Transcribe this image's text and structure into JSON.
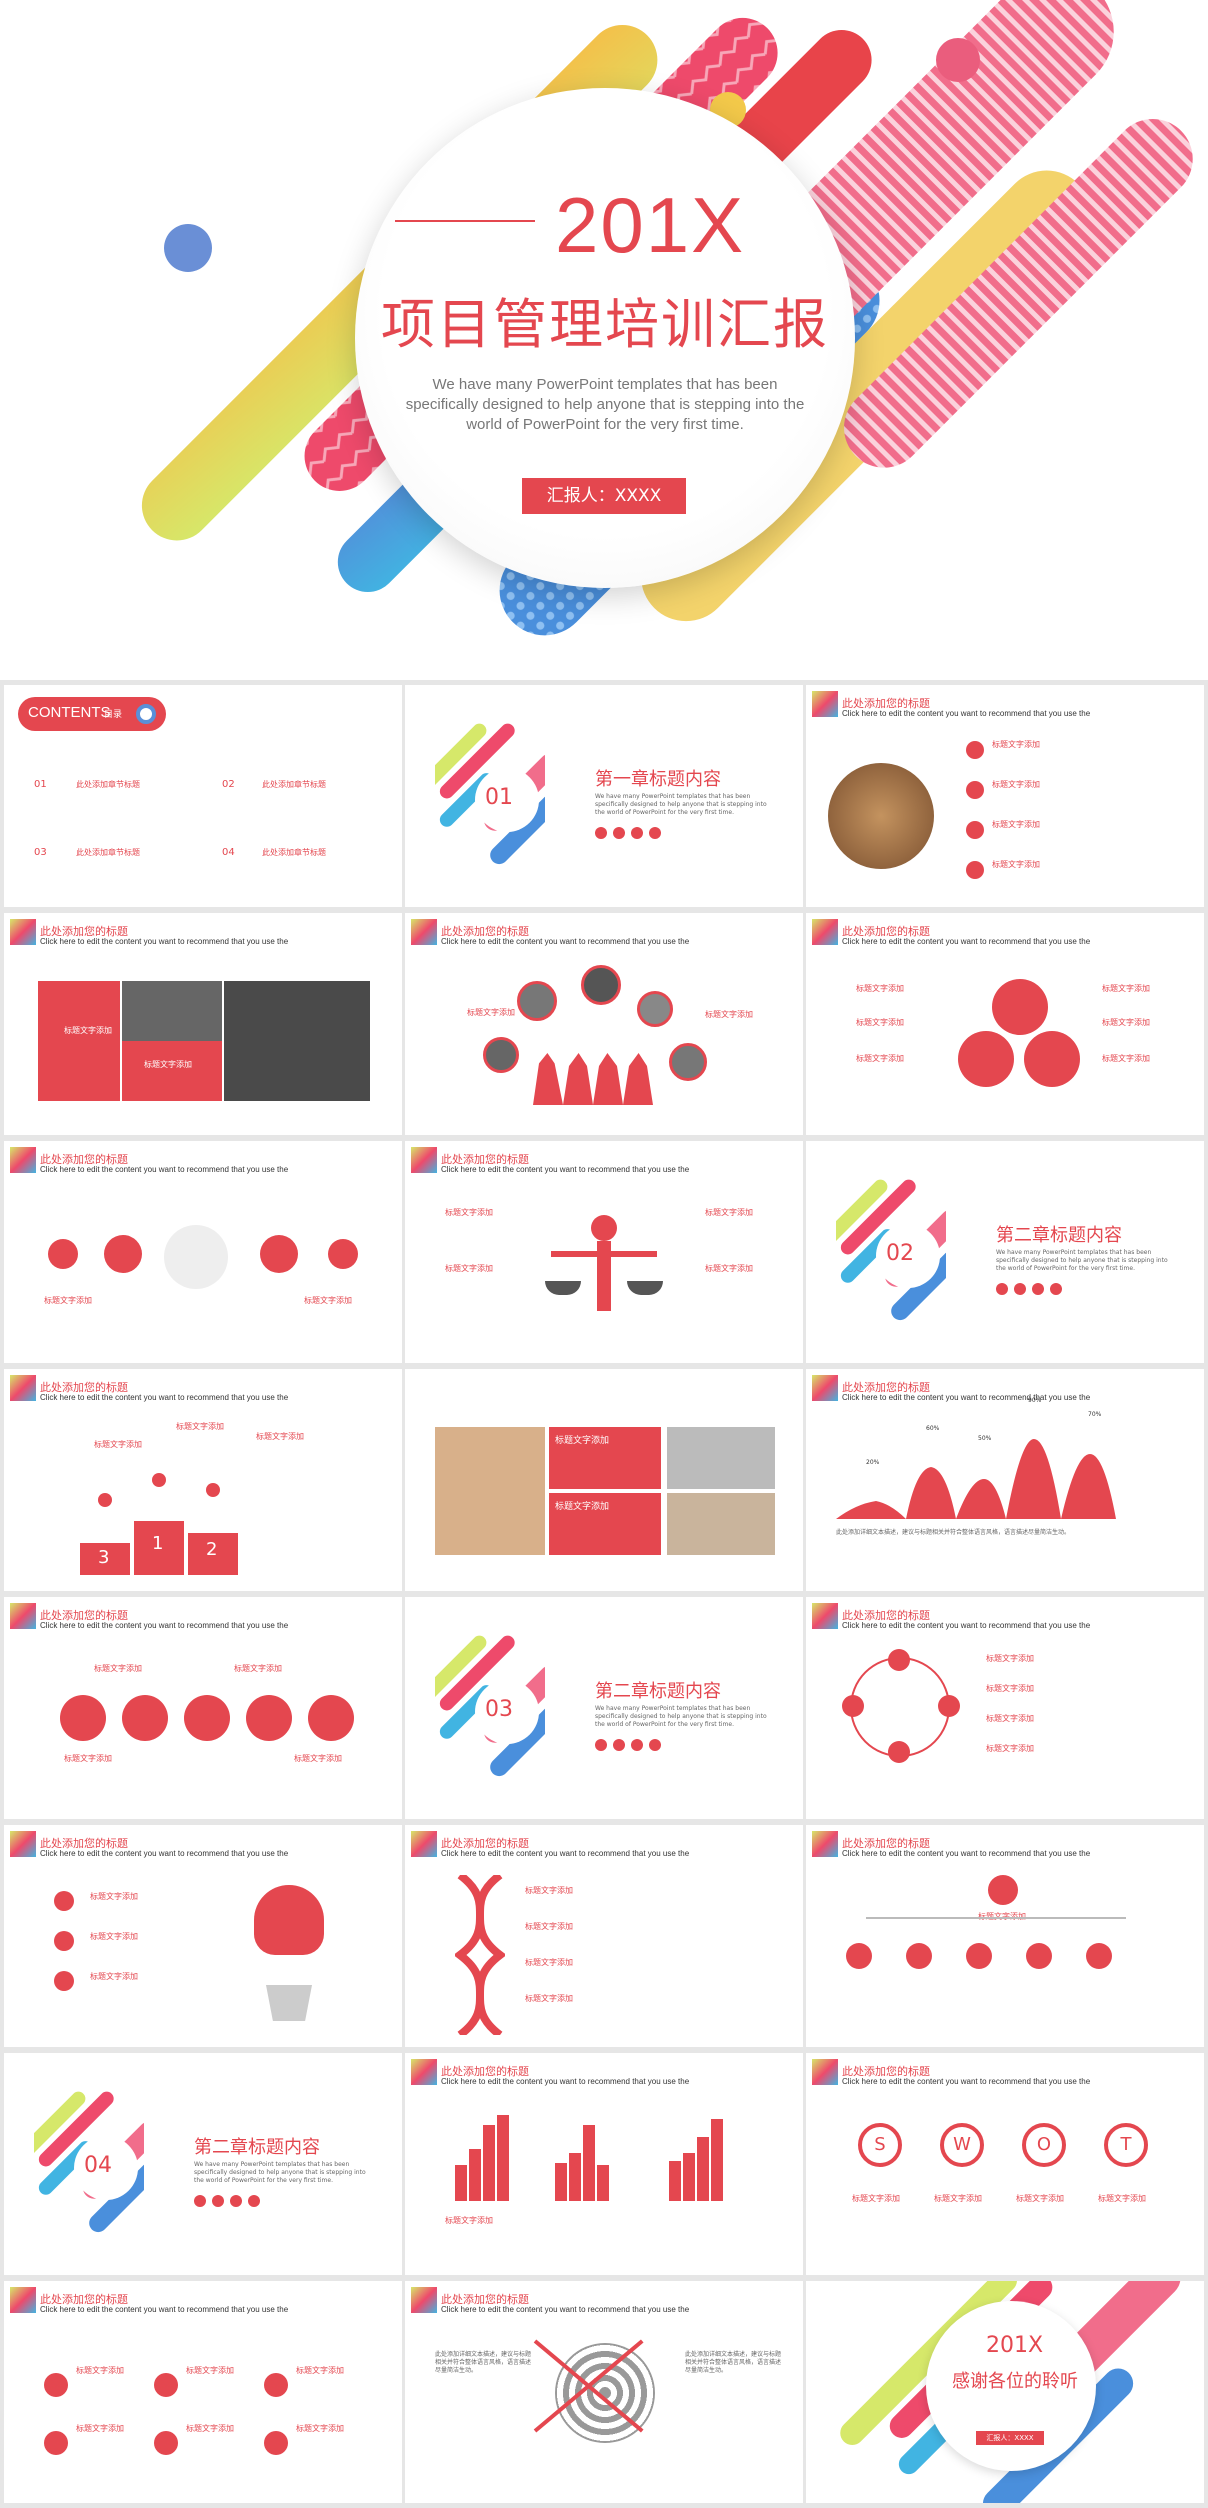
{
  "cover": {
    "year": "201X",
    "title": "项目管理培训汇报",
    "subtitle": "We have many PowerPoint templates that has been specifically designed to help anyone that is stepping into the world of PowerPoint for the very first time.",
    "reporter": "汇报人：XXXX"
  },
  "common": {
    "title": "此处添加您的标题",
    "subtitle": "Click here to edit the content you want to recommend that you use the",
    "label": "标题文字添加",
    "desc": "此处添加详细文本描述，建议与标题相关并符合整体语言风格，语言描述尽量简洁生动。"
  },
  "contents": {
    "label": "CONTENTS",
    "tag": "目录",
    "items": [
      "此处添加章节标题",
      "此处添加章节标题",
      "此处添加章节标题",
      "此处添加章节标题"
    ],
    "nums": [
      "01",
      "02",
      "03",
      "04"
    ]
  },
  "chapters": [
    {
      "num": "01",
      "title": "第一章标题内容"
    },
    {
      "num": "02",
      "title": "第二章标题内容"
    },
    {
      "num": "03",
      "title": "第二章标题内容"
    },
    {
      "num": "04",
      "title": "第二章标题内容"
    }
  ],
  "chapter_desc": "We have many PowerPoint templates that has been specifically designed to help anyone that is stepping into the world of PowerPoint for the very first time.",
  "podium": [
    "3",
    "1",
    "2"
  ],
  "peaks": [
    "20%",
    "60%",
    "50%",
    "90%",
    "70%"
  ],
  "swot": [
    "S",
    "W",
    "O",
    "T"
  ],
  "thanks": {
    "year": "201X",
    "title": "感谢各位的聆听",
    "btn": "汇报人：XXXX"
  }
}
